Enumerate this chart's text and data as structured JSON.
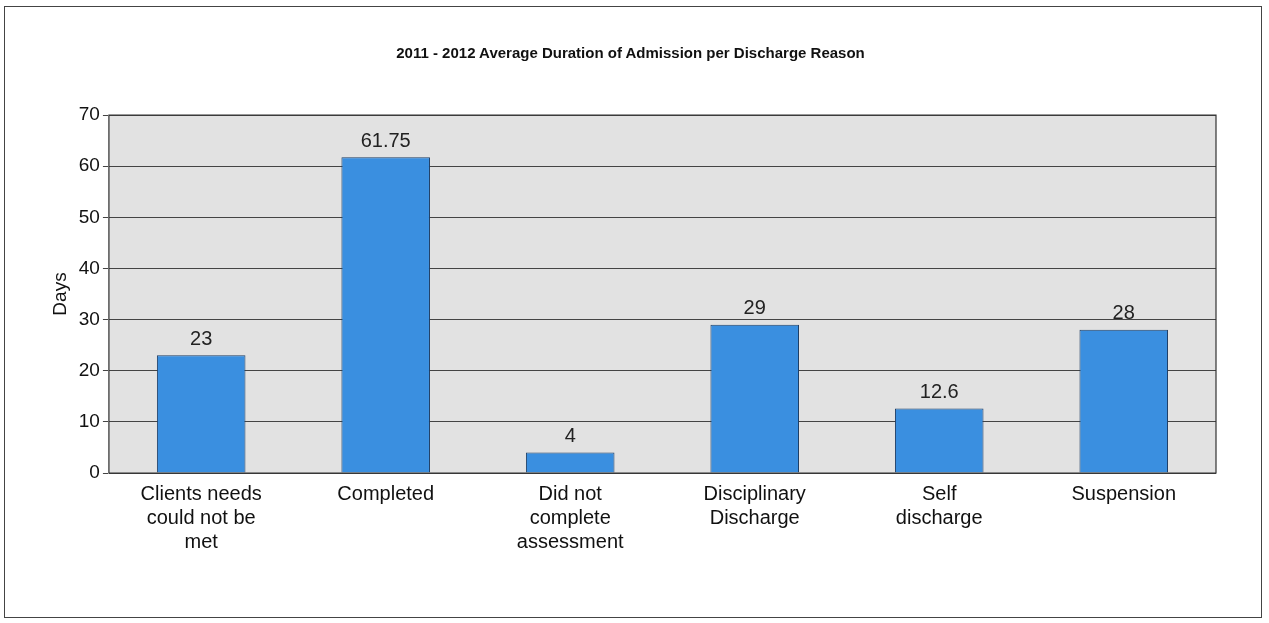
{
  "chart_data": {
    "type": "bar",
    "title": "2011 - 2012 Average Duration of Admission per Discharge Reason",
    "ylabel": "Days",
    "categories": [
      "Clients needs could not be met",
      "Completed",
      "Did not complete assessment",
      "Disciplinary Discharge",
      "Self discharge",
      "Suspension"
    ],
    "values": [
      23,
      61.75,
      4,
      29,
      12.6,
      28
    ],
    "color": "#3a8fe0",
    "ylim": [
      0,
      70
    ],
    "yticks": [
      0,
      10,
      20,
      30,
      40,
      50,
      60,
      70
    ],
    "grid": "y",
    "data_labels": true,
    "legend": false
  }
}
